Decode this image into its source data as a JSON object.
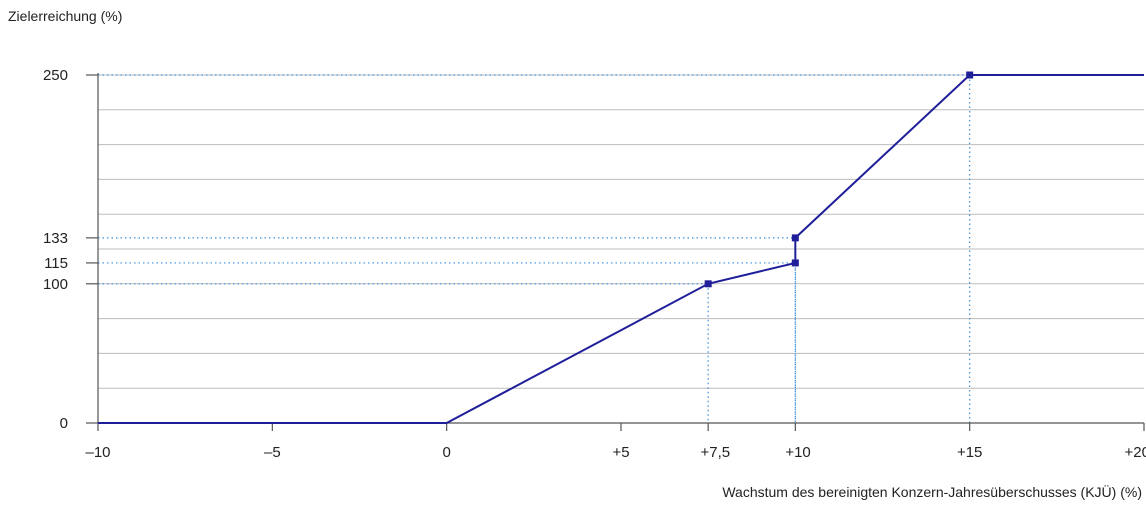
{
  "chart_data": {
    "type": "line",
    "ylabel": "Zielerreichung (%)",
    "xlabel": "Wachstum des bereinigten Konzern-Jahresüberschusses (KJÜ) (%)",
    "xlim": [
      -10,
      20
    ],
    "ylim": [
      0,
      250
    ],
    "x_ticks": [
      {
        "value": -10,
        "label": "–10"
      },
      {
        "value": -5,
        "label": "–5"
      },
      {
        "value": 0,
        "label": "0"
      },
      {
        "value": 5,
        "label": "+5"
      },
      {
        "value": 7.5,
        "label": "+7,5"
      },
      {
        "value": 10,
        "label": "+10"
      },
      {
        "value": 15,
        "label": "+15"
      },
      {
        "value": 20,
        "label": "+20"
      }
    ],
    "y_ticks": [
      {
        "value": 0,
        "label": "0"
      },
      {
        "value": 100,
        "label": "100"
      },
      {
        "value": 115,
        "label": "115"
      },
      {
        "value": 133,
        "label": "133"
      },
      {
        "value": 250,
        "label": "250"
      }
    ],
    "gridlines_y": [
      25,
      50,
      75,
      100,
      125,
      150,
      175,
      200,
      225,
      250
    ],
    "series": [
      {
        "points": [
          [
            -10,
            0
          ],
          [
            0,
            0
          ],
          [
            7.5,
            100
          ],
          [
            10,
            115
          ],
          [
            10,
            133
          ],
          [
            15,
            250
          ],
          [
            20,
            250
          ]
        ]
      }
    ],
    "markers": [
      [
        7.5,
        100
      ],
      [
        10,
        115
      ],
      [
        10,
        133
      ],
      [
        15,
        250
      ]
    ],
    "reference_lines": [
      [
        7.5,
        100
      ],
      [
        10,
        115
      ],
      [
        10,
        133
      ],
      [
        15,
        250
      ]
    ],
    "colors": {
      "line": "#1f1f9a",
      "grid": "#bdbdbd",
      "reference": "#3a8fdf",
      "axis": "#555555"
    }
  }
}
